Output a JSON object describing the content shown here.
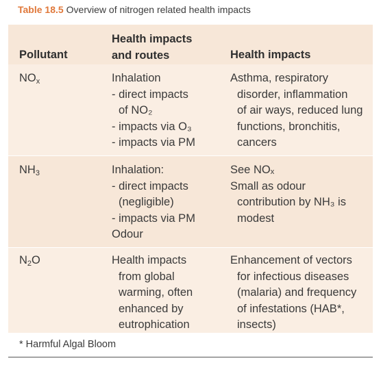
{
  "caption": {
    "number": "Table 18.5",
    "text": "Overview of nitrogen related health impacts"
  },
  "table": {
    "headers": {
      "pollutant": "Pollutant",
      "routes_line1": "Health impacts",
      "routes_line2": "and routes",
      "impacts": "Health impacts"
    },
    "rows": [
      {
        "pollutant": {
          "base": "NO",
          "sub": "x"
        },
        "routes": [
          "Inhalation",
          "- direct impacts",
          "of NO₂",
          "- impacts via O₃",
          "- impacts via PM"
        ],
        "impacts": [
          "Asthma, respiratory",
          "disorder, inflammation",
          "of air ways, reduced lung",
          "functions, bronchitis,",
          "cancers"
        ]
      },
      {
        "pollutant": {
          "base": "NH",
          "sub": "3"
        },
        "routes": [
          "Inhalation:",
          "- direct impacts",
          "(negligible)",
          "- impacts via PM",
          "Odour"
        ],
        "impacts": [
          "See NOₓ",
          "Small as odour",
          "contribution by NH₃ is",
          "modest"
        ]
      },
      {
        "pollutant": {
          "base": "N",
          "sub": "2",
          "tail": "O"
        },
        "routes": [
          "Health impacts",
          "from global",
          "warming, often",
          "enhanced by",
          "eutrophication"
        ],
        "impacts": [
          "Enhancement of vectors",
          "for infectious diseases",
          "(malaria) and frequency",
          "of infestations (HAB*,",
          "insects)"
        ]
      }
    ]
  },
  "footnote": "* Harmful Algal Bloom"
}
